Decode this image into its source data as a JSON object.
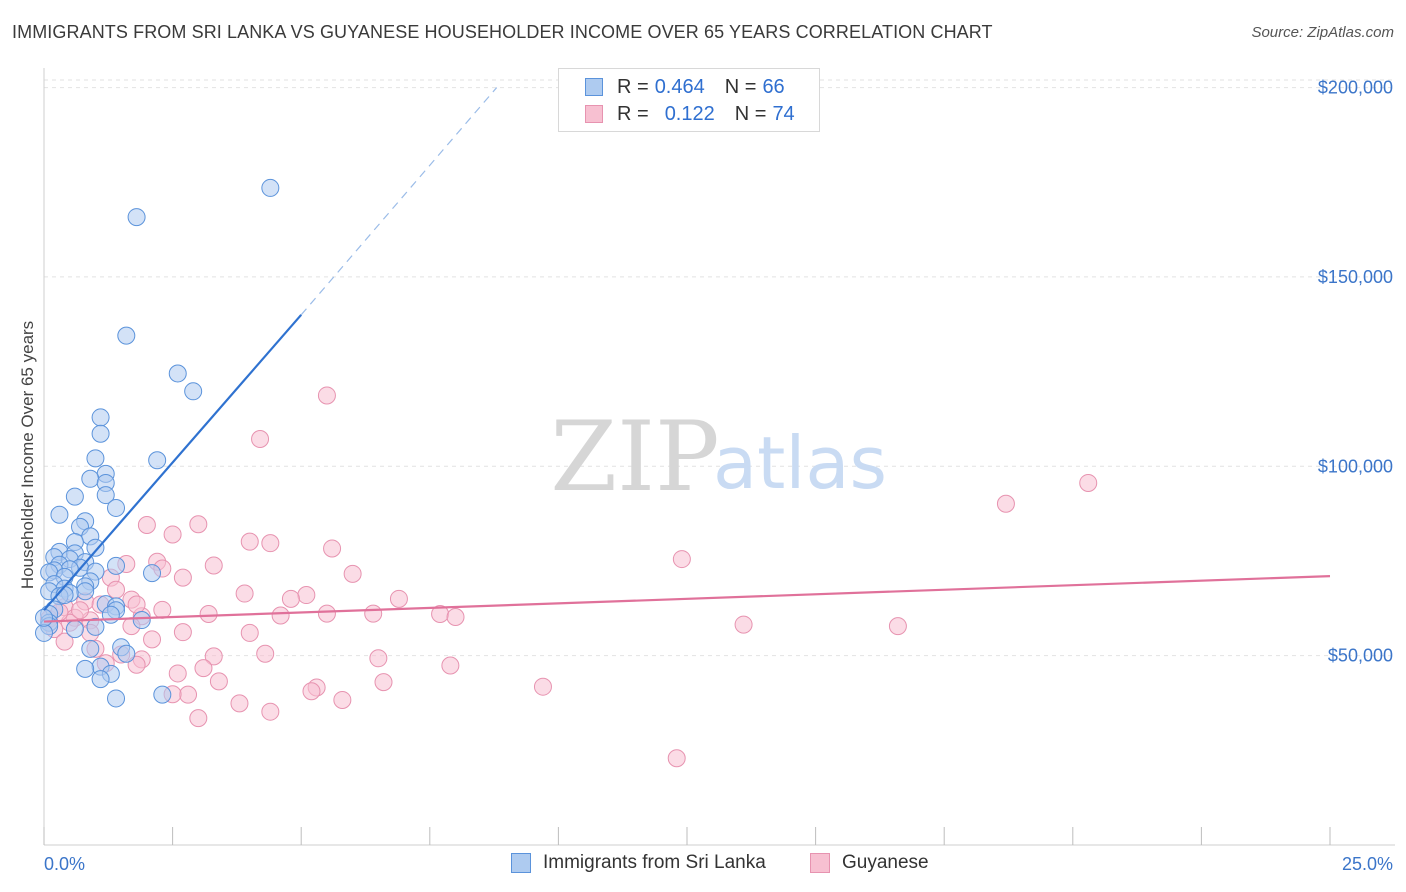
{
  "title": "IMMIGRANTS FROM SRI LANKA VS GUYANESE HOUSEHOLDER INCOME OVER 65 YEARS CORRELATION CHART",
  "source": "Source: ZipAtlas.com",
  "watermark": {
    "zip": "ZIP",
    "atlas": "atlas"
  },
  "colors": {
    "blue_fill": "#aecbf0",
    "blue_stroke": "#5b93db",
    "blue_line": "#2f72d0",
    "pink_fill": "#f7c0d1",
    "pink_stroke": "#e793b0",
    "pink_line": "#e0719a",
    "grid": "#e2e2e2",
    "tick_label": "#3b75c9"
  },
  "legend": {
    "r_label": "R =",
    "n_label": "N =",
    "series": [
      {
        "r": "0.464",
        "n": "66"
      },
      {
        "r": "0.122",
        "n": "74"
      }
    ]
  },
  "chart_data": {
    "type": "scatter",
    "title": "IMMIGRANTS FROM SRI LANKA VS GUYANESE HOUSEHOLDER INCOME OVER 65 YEARS CORRELATION CHART",
    "xlabel": "",
    "ylabel": "Householder Income Over 65 years",
    "xlim": [
      0,
      25
    ],
    "ylim": [
      0,
      202000
    ],
    "x_tick_labels": [
      "0.0%",
      "25.0%"
    ],
    "y_ticks": [
      50000,
      100000,
      150000,
      200000
    ],
    "y_tick_labels": [
      "$50,000",
      "$100,000",
      "$150,000",
      "$200,000"
    ],
    "grid": true,
    "legend_position": "top-center",
    "series": [
      {
        "name": "Immigrants from Sri Lanka",
        "r": 0.464,
        "n": 66,
        "trend": {
          "x0": 0,
          "y0": 62000,
          "x1": 5.0,
          "y1": 140000,
          "dashed_to_x": 8.8,
          "dashed_to_y": 200000
        },
        "points": [
          [
            4.4,
            173500
          ],
          [
            1.8,
            165800
          ],
          [
            1.6,
            134500
          ],
          [
            2.6,
            124500
          ],
          [
            2.9,
            119800
          ],
          [
            1.1,
            112900
          ],
          [
            1.1,
            108600
          ],
          [
            1.0,
            102100
          ],
          [
            2.2,
            101600
          ],
          [
            1.2,
            98000
          ],
          [
            0.9,
            96700
          ],
          [
            1.2,
            95600
          ],
          [
            1.2,
            92400
          ],
          [
            0.6,
            92000
          ],
          [
            1.4,
            89000
          ],
          [
            0.3,
            87200
          ],
          [
            0.8,
            85500
          ],
          [
            0.7,
            84000
          ],
          [
            0.9,
            81500
          ],
          [
            0.6,
            80000
          ],
          [
            1.0,
            78500
          ],
          [
            0.3,
            77400
          ],
          [
            0.6,
            77000
          ],
          [
            0.2,
            76000
          ],
          [
            0.5,
            75500
          ],
          [
            0.8,
            74700
          ],
          [
            0.3,
            74000
          ],
          [
            1.4,
            73700
          ],
          [
            0.7,
            73200
          ],
          [
            0.5,
            72800
          ],
          [
            0.2,
            72500
          ],
          [
            1.0,
            72200
          ],
          [
            0.1,
            72000
          ],
          [
            2.1,
            71800
          ],
          [
            0.4,
            70800
          ],
          [
            0.9,
            69600
          ],
          [
            0.2,
            68900
          ],
          [
            0.8,
            68300
          ],
          [
            0.4,
            67700
          ],
          [
            0.1,
            67000
          ],
          [
            0.8,
            67000
          ],
          [
            0.5,
            66500
          ],
          [
            0.3,
            65700
          ],
          [
            1.2,
            63600
          ],
          [
            1.4,
            63000
          ],
          [
            0.2,
            62200
          ],
          [
            1.4,
            62000
          ],
          [
            0.1,
            61000
          ],
          [
            1.3,
            60800
          ],
          [
            1.9,
            59400
          ],
          [
            0.1,
            58700
          ],
          [
            0.1,
            57800
          ],
          [
            1.0,
            57600
          ],
          [
            0.6,
            57000
          ],
          [
            0.0,
            56000
          ],
          [
            1.5,
            52200
          ],
          [
            0.9,
            51800
          ],
          [
            1.6,
            50500
          ],
          [
            1.1,
            47100
          ],
          [
            0.8,
            46500
          ],
          [
            1.3,
            45200
          ],
          [
            1.1,
            43800
          ],
          [
            2.3,
            39700
          ],
          [
            1.4,
            38700
          ],
          [
            0.0,
            60000
          ],
          [
            0.4,
            66000
          ]
        ]
      },
      {
        "name": "Guyanese",
        "r": 0.122,
        "n": 74,
        "trend": {
          "x0": 0,
          "y0": 59000,
          "x1": 25,
          "y1": 71000
        },
        "points": [
          [
            5.5,
            118700
          ],
          [
            4.2,
            107200
          ],
          [
            20.3,
            95600
          ],
          [
            18.7,
            90100
          ],
          [
            2.0,
            84500
          ],
          [
            3.0,
            84700
          ],
          [
            2.5,
            82000
          ],
          [
            4.0,
            80100
          ],
          [
            4.4,
            79700
          ],
          [
            5.6,
            78300
          ],
          [
            12.4,
            75500
          ],
          [
            2.2,
            74800
          ],
          [
            1.6,
            74200
          ],
          [
            3.3,
            73800
          ],
          [
            2.3,
            73000
          ],
          [
            6.0,
            71600
          ],
          [
            2.7,
            70600
          ],
          [
            1.3,
            70600
          ],
          [
            1.4,
            67400
          ],
          [
            3.9,
            66400
          ],
          [
            5.1,
            66000
          ],
          [
            4.8,
            65000
          ],
          [
            6.9,
            65000
          ],
          [
            1.7,
            64800
          ],
          [
            0.8,
            64300
          ],
          [
            1.1,
            63500
          ],
          [
            0.4,
            62800
          ],
          [
            2.3,
            62100
          ],
          [
            6.4,
            61100
          ],
          [
            5.5,
            61100
          ],
          [
            3.2,
            61000
          ],
          [
            7.7,
            61000
          ],
          [
            4.6,
            60600
          ],
          [
            1.9,
            60400
          ],
          [
            0.6,
            60000
          ],
          [
            8.0,
            60200
          ],
          [
            0.1,
            59700
          ],
          [
            0.9,
            59300
          ],
          [
            0.5,
            58700
          ],
          [
            13.6,
            58200
          ],
          [
            16.6,
            57800
          ],
          [
            1.7,
            57800
          ],
          [
            0.2,
            57000
          ],
          [
            0.9,
            56000
          ],
          [
            2.7,
            56200
          ],
          [
            4.0,
            56000
          ],
          [
            2.1,
            54300
          ],
          [
            0.4,
            53700
          ],
          [
            1.0,
            51800
          ],
          [
            4.3,
            50500
          ],
          [
            1.5,
            50300
          ],
          [
            3.3,
            49800
          ],
          [
            6.5,
            49300
          ],
          [
            1.9,
            49000
          ],
          [
            7.9,
            47400
          ],
          [
            1.8,
            47600
          ],
          [
            3.1,
            46700
          ],
          [
            2.6,
            45300
          ],
          [
            3.4,
            43200
          ],
          [
            6.6,
            43000
          ],
          [
            9.7,
            41800
          ],
          [
            5.3,
            41600
          ],
          [
            5.2,
            40600
          ],
          [
            2.8,
            39700
          ],
          [
            2.5,
            39800
          ],
          [
            5.8,
            38300
          ],
          [
            3.8,
            37400
          ],
          [
            4.4,
            35200
          ],
          [
            3.0,
            33500
          ],
          [
            12.3,
            22900
          ],
          [
            1.2,
            48000
          ],
          [
            0.7,
            62000
          ],
          [
            1.8,
            63500
          ],
          [
            0.3,
            61500
          ]
        ]
      }
    ]
  }
}
